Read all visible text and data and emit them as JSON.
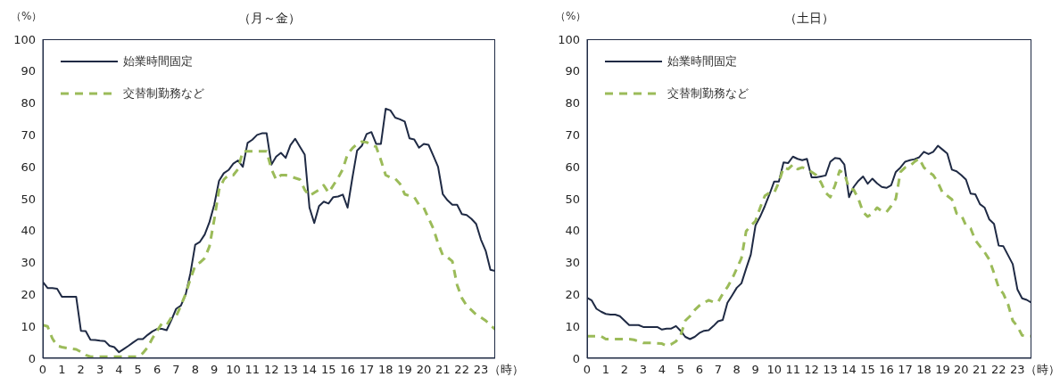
{
  "chart_data": [
    {
      "type": "line",
      "title": "（月～金）",
      "ylabel": "（%）",
      "xlabel": "（時）",
      "legend": "top left",
      "xlim": [
        0,
        23.75
      ],
      "xticks": [
        0,
        1,
        2,
        3,
        4,
        5,
        6,
        7,
        8,
        9,
        10,
        11,
        12,
        13,
        14,
        15,
        16,
        17,
        18,
        19,
        20,
        21,
        22,
        23
      ],
      "ylim": [
        0,
        100
      ],
      "yticks": [
        0,
        10,
        20,
        30,
        40,
        50,
        60,
        70,
        80,
        90,
        100
      ],
      "x": [
        0,
        0.25,
        0.5,
        0.75,
        1,
        1.25,
        1.5,
        1.75,
        2,
        2.25,
        2.5,
        2.75,
        3,
        3.25,
        3.5,
        3.75,
        4,
        4.25,
        4.5,
        4.75,
        5,
        5.25,
        5.5,
        5.75,
        6,
        6.25,
        6.5,
        6.75,
        7,
        7.25,
        7.5,
        7.75,
        8,
        8.25,
        8.5,
        8.75,
        9,
        9.25,
        9.5,
        9.75,
        10,
        10.25,
        10.5,
        10.75,
        11,
        11.25,
        11.5,
        11.75,
        12,
        12.25,
        12.5,
        12.75,
        13,
        13.25,
        13.5,
        13.75,
        14,
        14.25,
        14.5,
        14.75,
        15,
        15.25,
        15.5,
        15.75,
        16,
        16.25,
        16.5,
        16.75,
        17,
        17.25,
        17.5,
        17.75,
        18,
        18.25,
        18.5,
        18.75,
        19,
        19.25,
        19.5,
        19.75,
        20,
        20.25,
        20.5,
        20.75,
        21,
        21.25,
        21.5,
        21.75,
        22,
        22.25,
        22.5,
        22.75,
        23,
        23.25,
        23.5,
        23.75
      ],
      "series": [
        {
          "name": "始業時間固定",
          "color": "#1f2a44",
          "line_style": "solid",
          "values": [
            23.9,
            22,
            22,
            21.8,
            19.3,
            19.3,
            19.3,
            19.3,
            8.6,
            8.5,
            5.8,
            5.7,
            5.5,
            5.4,
            3.9,
            3.5,
            1.9,
            2.9,
            3.9,
            5,
            6,
            6,
            7.3,
            8.4,
            9.2,
            9.2,
            8.8,
            12,
            15.5,
            16.5,
            20,
            26.7,
            35.6,
            36.5,
            38.8,
            42.7,
            48.1,
            55.6,
            58,
            59,
            61,
            62,
            60,
            67.5,
            68.5,
            70,
            70.5,
            70.5,
            60.7,
            63.2,
            64.4,
            62.8,
            66.8,
            68.8,
            66.3,
            63.8,
            47.2,
            42.4,
            47.7,
            49.1,
            48.5,
            50.5,
            50.7,
            51.3,
            47.2,
            56.5,
            65.1,
            66.6,
            70.3,
            70.9,
            67.2,
            67.2,
            78.2,
            77.7,
            75.4,
            74.9,
            74.2,
            68.9,
            68.6,
            66,
            67.2,
            66.9,
            63.5,
            60,
            51.4,
            49.5,
            48.1,
            48.1,
            45.2,
            44.9,
            43.7,
            42.1,
            37.2,
            33.7,
            27.7,
            27.4
          ]
        },
        {
          "name": "交替制勤務など",
          "color": "#9bbb59",
          "line_style": "dashed",
          "values": [
            10.4,
            10,
            6.2,
            3.9,
            3.5,
            3.2,
            3,
            2.8,
            2,
            1,
            0.5,
            0.5,
            0.5,
            0.5,
            0.5,
            0.5,
            0.5,
            0.5,
            0.5,
            0.5,
            0.5,
            1.6,
            3.4,
            6.2,
            8.6,
            10.9,
            10.4,
            12.8,
            13.2,
            16.5,
            20.2,
            24.9,
            29,
            30,
            31.4,
            35.1,
            43.5,
            52.8,
            56,
            57.4,
            57.4,
            59.3,
            64.9,
            64.9,
            64.9,
            64.9,
            64.9,
            64.9,
            59.3,
            56,
            57.4,
            57.4,
            57,
            56.5,
            56,
            52.8,
            50.9,
            51.9,
            52.8,
            54.2,
            51.9,
            54.2,
            56.5,
            59.3,
            64,
            65.8,
            67.2,
            67.9,
            67.7,
            66.8,
            66.3,
            62.1,
            57.4,
            56.7,
            56.3,
            54.7,
            51.4,
            50.9,
            50.5,
            48.1,
            47.2,
            43.9,
            40.7,
            36,
            32.3,
            31.6,
            30.4,
            23,
            18.9,
            16.5,
            15.1,
            13.7,
            12.8,
            11.8,
            10.4,
            9
          ]
        }
      ]
    },
    {
      "type": "line",
      "title": "（土日）",
      "ylabel": "（%）",
      "xlabel": "（時）",
      "legend": "top left",
      "xlim": [
        0,
        23.75
      ],
      "xticks": [
        0,
        1,
        2,
        3,
        4,
        5,
        6,
        7,
        8,
        9,
        10,
        11,
        12,
        13,
        14,
        15,
        16,
        17,
        18,
        19,
        20,
        21,
        22,
        23
      ],
      "ylim": [
        0,
        100
      ],
      "yticks": [
        0,
        10,
        20,
        30,
        40,
        50,
        60,
        70,
        80,
        90,
        100
      ],
      "x": [
        0,
        0.25,
        0.5,
        0.75,
        1,
        1.25,
        1.5,
        1.75,
        2,
        2.25,
        2.5,
        2.75,
        3,
        3.25,
        3.5,
        3.75,
        4,
        4.25,
        4.5,
        4.75,
        5,
        5.25,
        5.5,
        5.75,
        6,
        6.25,
        6.5,
        6.75,
        7,
        7.25,
        7.5,
        7.75,
        8,
        8.25,
        8.5,
        8.75,
        9,
        9.25,
        9.5,
        9.75,
        10,
        10.25,
        10.5,
        10.75,
        11,
        11.25,
        11.5,
        11.75,
        12,
        12.25,
        12.5,
        12.75,
        13,
        13.25,
        13.5,
        13.75,
        14,
        14.25,
        14.5,
        14.75,
        15,
        15.25,
        15.5,
        15.75,
        16,
        16.25,
        16.5,
        16.75,
        17,
        17.25,
        17.5,
        17.75,
        18,
        18.25,
        18.5,
        18.75,
        19,
        19.25,
        19.5,
        19.75,
        20,
        20.25,
        20.5,
        20.75,
        21,
        21.25,
        21.5,
        21.75,
        22,
        22.25,
        22.5,
        22.75,
        23,
        23.25,
        23.5,
        23.75
      ],
      "series": [
        {
          "name": "始業時間固定",
          "color": "#1f2a44",
          "line_style": "solid",
          "values": [
            19,
            18.1,
            15.5,
            14.6,
            13.9,
            13.7,
            13.7,
            13.2,
            11.8,
            10.4,
            10.4,
            10.4,
            9.8,
            9.8,
            9.8,
            9.8,
            9,
            9.3,
            9.3,
            10.1,
            8.6,
            6.7,
            6,
            6.7,
            7.9,
            8.6,
            8.8,
            10.1,
            11.6,
            12,
            17.4,
            19.7,
            22.1,
            23.5,
            28.1,
            32.5,
            41.6,
            44.4,
            47.7,
            51.4,
            55.4,
            55.4,
            61.4,
            61.2,
            63.2,
            62.5,
            62.1,
            62.5,
            56.7,
            56.7,
            57,
            57.3,
            61.6,
            62.8,
            62.6,
            60.7,
            50.5,
            53.7,
            55.6,
            57,
            54.7,
            56.3,
            54.8,
            53.7,
            53.4,
            54.2,
            58.4,
            59.8,
            61.6,
            62.1,
            62.4,
            63,
            64.7,
            64,
            64.7,
            66.6,
            65.4,
            64.2,
            59.1,
            58.6,
            57.4,
            56,
            51.6,
            51.4,
            48.3,
            47.2,
            43.5,
            42.1,
            35.3,
            35.1,
            32.3,
            29.5,
            21.6,
            18.8,
            18.3,
            17.4
          ]
        },
        {
          "name": "交替制勤務など",
          "color": "#9bbb59",
          "line_style": "dashed",
          "values": [
            6.9,
            6.9,
            6.9,
            6.9,
            6,
            6,
            6,
            6,
            6,
            6,
            5.8,
            5.3,
            4.8,
            4.8,
            4.8,
            4.7,
            4.6,
            3.9,
            4.4,
            5.3,
            7.2,
            11.8,
            13.2,
            15.1,
            16.5,
            17.4,
            18.2,
            17.6,
            17.6,
            20.2,
            22.3,
            24.9,
            28.1,
            31.4,
            39.8,
            41.6,
            43,
            47.2,
            50.9,
            51.9,
            51.9,
            55.1,
            59.8,
            59.3,
            60.7,
            59.3,
            59.8,
            59.3,
            58.4,
            57.4,
            55.1,
            51.9,
            50.5,
            54.2,
            58.8,
            57.9,
            53.3,
            52.8,
            50,
            45.8,
            44.4,
            45.4,
            47.2,
            46.1,
            45.8,
            47.7,
            50,
            58.4,
            59.8,
            60.2,
            61.6,
            62.6,
            59.8,
            58.4,
            57.4,
            55.1,
            51.9,
            50.9,
            49.8,
            45.4,
            44.9,
            41.6,
            40.7,
            37,
            35.1,
            33.2,
            30.9,
            26.7,
            22.1,
            20.2,
            16.9,
            11.8,
            10,
            7.2,
            6.9,
            6.9
          ]
        }
      ]
    }
  ]
}
